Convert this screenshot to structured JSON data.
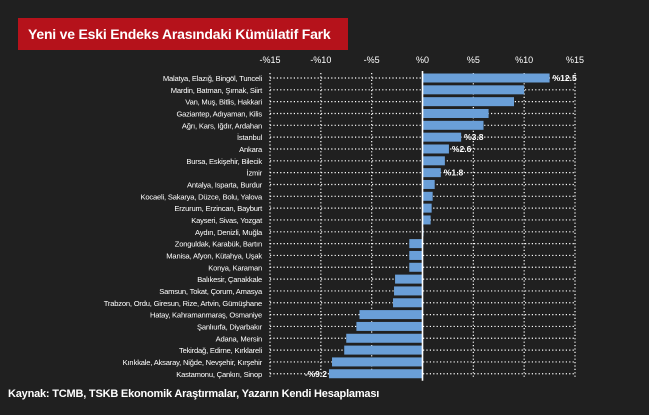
{
  "title": "Yeni ve Eski Endeks Arasındaki Kümülatif Fark",
  "source": "Kaynak: TCMB, TSKB Ekonomik Araştırmalar, Yazarın Kendi Hesaplaması",
  "colors": {
    "bar": "#6a9fd8",
    "title_bg": "#b5121b",
    "background": "#202020",
    "text": "#ffffff"
  },
  "chart_data": {
    "type": "bar",
    "orientation": "horizontal",
    "xlim": [
      -15,
      15
    ],
    "xticks": [
      -15,
      -10,
      -5,
      0,
      5,
      10,
      15
    ],
    "xtick_labels": [
      "-%15",
      "-%10",
      "-%5",
      "%0",
      "%5",
      "%10",
      "%15"
    ],
    "grid": true,
    "categories": [
      "Malatya, Elazığ, Bingöl, Tunceli",
      "Mardin, Batman, Şırnak, Siirt",
      "Van, Muş, Bitlis, Hakkari",
      "Gaziantep, Adıyaman, Kilis",
      "Ağrı, Kars, Iğdır, Ardahan",
      "İstanbul",
      "Ankara",
      "Bursa, Eskişehir, Bilecik",
      "İzmir",
      "Antalya, Isparta, Burdur",
      "Kocaeli, Sakarya, Düzce, Bolu, Yalova",
      "Erzurum, Erzincan, Bayburt",
      "Kayseri, Sivas, Yozgat",
      "Aydın, Denizli, Muğla",
      "Zonguldak, Karabük, Bartın",
      "Manisa, Afyon, Kütahya, Uşak",
      "Konya, Karaman",
      "Balıkesir, Çanakkale",
      "Samsun, Tokat, Çorum, Amasya",
      "Trabzon, Ordu, Giresun, Rize, Artvin, Gümüşhane",
      "Hatay, Kahramanmaraş, Osmaniye",
      "Şanlıurfa, Diyarbakır",
      "Adana, Mersin",
      "Tekirdağ, Edirne, Kırklareli",
      "Kırıkkale, Aksaray, Niğde, Nevşehir, Kırşehir",
      "Kastamonu, Çankırı, Sinop"
    ],
    "values": [
      12.5,
      10.0,
      9.0,
      6.5,
      6.0,
      3.8,
      2.6,
      2.2,
      1.8,
      1.2,
      1.0,
      0.9,
      0.8,
      0.1,
      -1.3,
      -1.3,
      -1.3,
      -2.7,
      -2.8,
      -2.9,
      -6.2,
      -6.5,
      -7.5,
      -7.7,
      -8.9,
      -9.2
    ],
    "data_labels": [
      {
        "index": 0,
        "text": "%12.5"
      },
      {
        "index": 5,
        "text": "%3.8"
      },
      {
        "index": 6,
        "text": "%2.6"
      },
      {
        "index": 8,
        "text": "%1.8"
      },
      {
        "index": 25,
        "text": "-%9.2"
      }
    ]
  }
}
